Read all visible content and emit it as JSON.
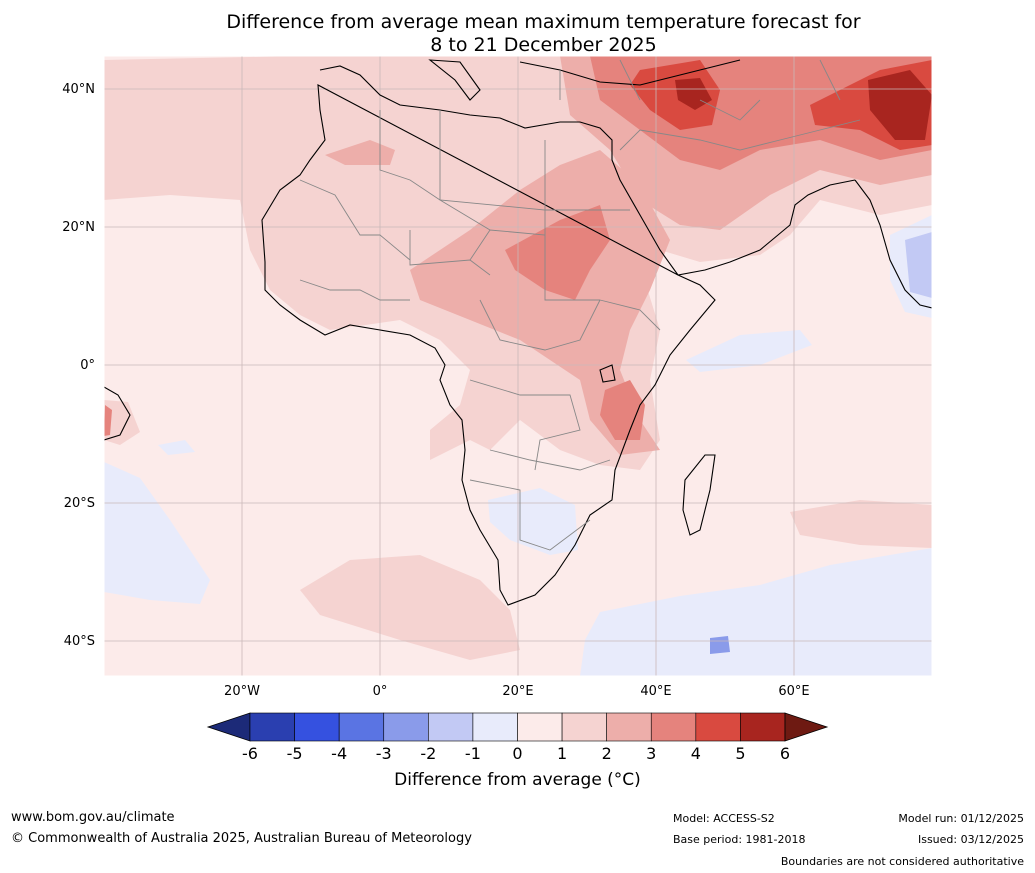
{
  "title_line1": "Difference from average mean maximum temperature forecast for",
  "title_line2": "8 to 21 December 2025",
  "lat_labels": [
    "40°N",
    "20°N",
    "0°",
    "20°S",
    "40°S"
  ],
  "lon_labels": [
    "20°W",
    "0°",
    "20°E",
    "40°E",
    "60°E"
  ],
  "colorbar": {
    "ticks": [
      "-6",
      "-5",
      "-4",
      "-3",
      "-2",
      "-1",
      "0",
      "1",
      "2",
      "3",
      "4",
      "5",
      "6"
    ],
    "colors": [
      "#1c2a78",
      "#2a3fb0",
      "#3551e0",
      "#5a74e3",
      "#8a9bea",
      "#c2c9f4",
      "#e8ebfb",
      "#fcebea",
      "#f5d3d1",
      "#edaeaa",
      "#e5837d",
      "#d94a40",
      "#a8251f",
      "#6e1a12"
    ],
    "label": "Difference from average (°C)"
  },
  "footer": {
    "website": "www.bom.gov.au/climate",
    "copyright": "© Commonwealth of Australia 2025, Australian Bureau of Meteorology",
    "model": "Model: ACCESS-S2",
    "base_period": "Base period: 1981-2018",
    "model_run": "Model run: 01/12/2025",
    "issued": "Issued: 03/12/2025",
    "disclaimer": "Boundaries are not considered authoritative"
  }
}
